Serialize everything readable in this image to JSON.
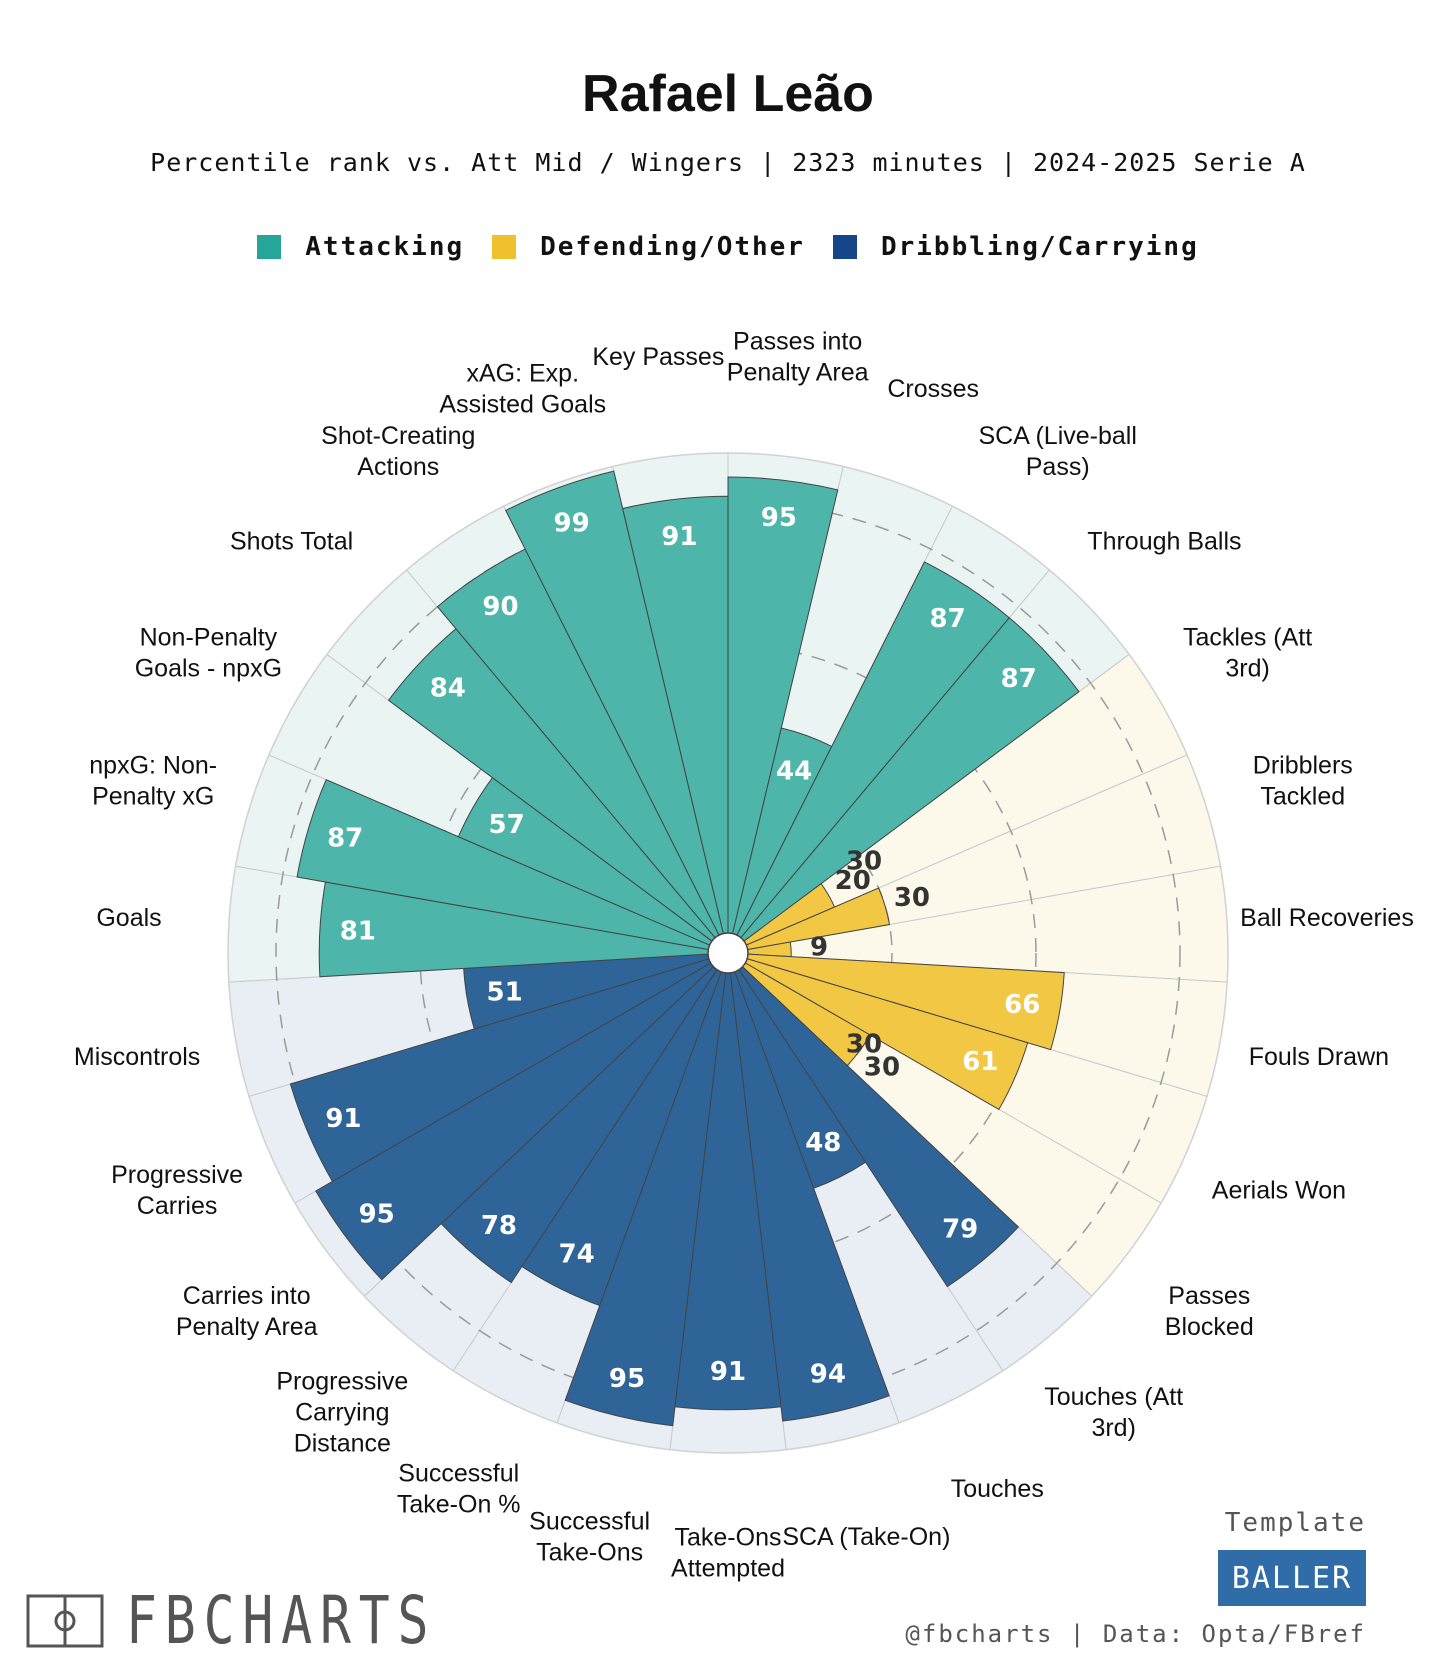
{
  "chart_data": {
    "type": "polar-bar",
    "title": "Rafael Leão",
    "subtitle": "Percentile rank vs. Att Mid / Wingers | 2323 minutes | 2024-2025 Serie A",
    "scale": [
      0,
      100
    ],
    "reference_rings": [
      30,
      60,
      90
    ],
    "groups": [
      {
        "name": "Attacking",
        "color": "#4db5a9",
        "bg": "#e9f4f3",
        "swatch": "#26a698"
      },
      {
        "name": "Defending/Other",
        "color": "#f2c744",
        "bg": "#fdf9ea",
        "swatch": "#f0c02f"
      },
      {
        "name": "Dribbling/Carrying",
        "color": "#2f6499",
        "bg": "#e9eef4",
        "swatch": "#15468a"
      }
    ],
    "categories": [
      {
        "label": "Passes into\nPenalty Area",
        "value": 95,
        "group": 0
      },
      {
        "label": "Crosses",
        "value": 44,
        "group": 0
      },
      {
        "label": "SCA (Live-ball\nPass)",
        "value": 87,
        "group": 0
      },
      {
        "label": "Through Balls",
        "value": 87,
        "group": 0
      },
      {
        "label": "Tackles (Att\n3rd)",
        "value": 20,
        "group": 1
      },
      {
        "label": "Dribblers\nTackled",
        "value": 30,
        "group": 1
      },
      {
        "label": "Ball Recoveries",
        "value": 9,
        "group": 1
      },
      {
        "label": "Fouls Drawn",
        "value": 66,
        "group": 1
      },
      {
        "label": "Aerials Won",
        "value": 61,
        "group": 1
      },
      {
        "label": "Passes\nBlocked",
        "value": 30,
        "group": 1
      },
      {
        "label": "Touches (Att\n3rd)",
        "value": 79,
        "group": 2
      },
      {
        "label": "Touches",
        "value": 48,
        "group": 2
      },
      {
        "label": "SCA (Take-On)",
        "value": 94,
        "group": 2
      },
      {
        "label": "Take-Ons\nAttempted",
        "value": 91,
        "group": 2
      },
      {
        "label": "Successful\nTake-Ons",
        "value": 95,
        "group": 2
      },
      {
        "label": "Successful\nTake-On %",
        "value": 74,
        "group": 2
      },
      {
        "label": "Progressive\nCarrying\nDistance",
        "value": 78,
        "group": 2
      },
      {
        "label": "Carries into\nPenalty Area",
        "value": 95,
        "group": 2
      },
      {
        "label": "Progressive\nCarries",
        "value": 91,
        "group": 2
      },
      {
        "label": "Miscontrols",
        "value": 51,
        "group": 2
      },
      {
        "label": "Goals",
        "value": 81,
        "group": 0
      },
      {
        "label": "npxG: Non-\nPenalty xG",
        "value": 87,
        "group": 0
      },
      {
        "label": "Non-Penalty\nGoals - npxG",
        "value": 57,
        "group": 0
      },
      {
        "label": "Shots Total",
        "value": 84,
        "group": 0
      },
      {
        "label": "Shot-Creating\nActions",
        "value": 90,
        "group": 0
      },
      {
        "label": "xAG: Exp.\nAssisted Goals",
        "value": 99,
        "group": 0
      },
      {
        "label": "Key Passes",
        "value": 91,
        "group": 0
      }
    ]
  },
  "footer": {
    "logo_text": "FBCHARTS",
    "template_label": "Template",
    "template_name": "BALLER",
    "credits": "@fbcharts | Data: Opta/FBref"
  }
}
